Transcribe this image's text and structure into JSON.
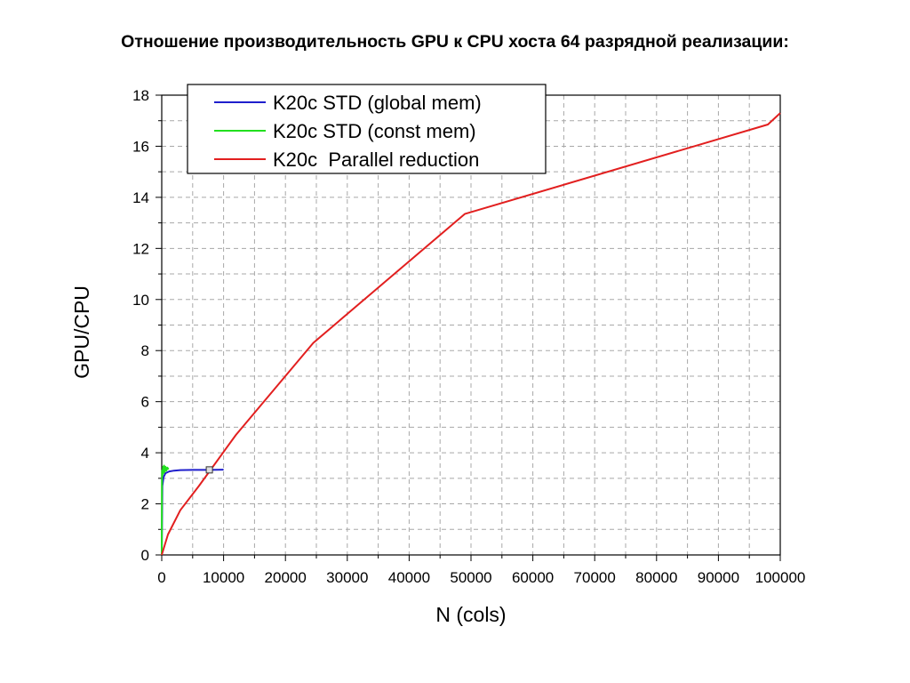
{
  "page": {
    "title": "Отношение производительность GPU к CPU хоста 64 разрядной реализации:"
  },
  "chart_data": {
    "type": "line",
    "title": "Отношение производительность GPU к CPU хоста 64 разрядной реализации:",
    "xlabel": "N (cols)",
    "ylabel": "GPU/CPU",
    "xlim": [
      0,
      100000
    ],
    "ylim": [
      0,
      18
    ],
    "xticks": [
      0,
      10000,
      20000,
      30000,
      40000,
      50000,
      60000,
      70000,
      80000,
      90000,
      100000
    ],
    "yticks": [
      0,
      2,
      4,
      6,
      8,
      10,
      12,
      14,
      16,
      18
    ],
    "grid": true,
    "legend_position": "top-left",
    "series": [
      {
        "name": "K20c STD (global mem)",
        "color": "#1f1fcc",
        "points": [
          [
            0,
            0
          ],
          [
            100,
            2.7
          ],
          [
            300,
            3.05
          ],
          [
            600,
            3.2
          ],
          [
            1200,
            3.27
          ],
          [
            2000,
            3.3
          ],
          [
            3000,
            3.32
          ],
          [
            5000,
            3.33
          ],
          [
            7700,
            3.33
          ],
          [
            10000,
            3.34
          ]
        ]
      },
      {
        "name": "K20c STD (const mem)",
        "color": "#22e01f",
        "points": [
          [
            0,
            0
          ],
          [
            50,
            3.3
          ],
          [
            120,
            3.1
          ],
          [
            200,
            3.45
          ],
          [
            280,
            3.2
          ],
          [
            380,
            3.5
          ],
          [
            480,
            3.25
          ],
          [
            600,
            3.45
          ],
          [
            750,
            3.3
          ],
          [
            900,
            3.42
          ],
          [
            1100,
            3.35
          ]
        ]
      },
      {
        "name": "K20c  Parallel reduction",
        "color": "#e21f1f",
        "points": [
          [
            0,
            0
          ],
          [
            1000,
            0.8
          ],
          [
            3000,
            1.75
          ],
          [
            6000,
            2.7
          ],
          [
            12000,
            4.7
          ],
          [
            24500,
            8.3
          ],
          [
            49000,
            13.35
          ],
          [
            98000,
            16.85
          ],
          [
            100000,
            17.3
          ]
        ]
      }
    ],
    "marker": {
      "x": 7700,
      "y": 3.33
    }
  }
}
